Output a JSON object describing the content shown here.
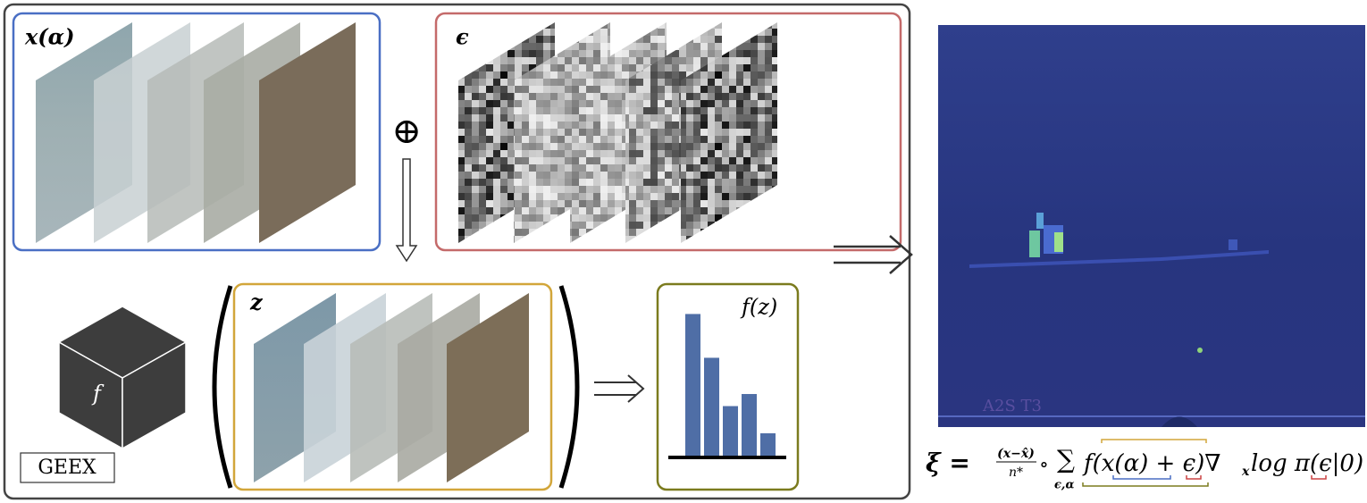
{
  "panels": {
    "x_alpha": {
      "label": "x(α)"
    },
    "epsilon": {
      "label": "ϵ"
    },
    "z": {
      "label": "z"
    },
    "output": {
      "label": "f(z)",
      "histogram": {
        "values": [
          0.95,
          0.66,
          0.34,
          0.42,
          0.16
        ],
        "ylim": [
          0,
          1
        ]
      }
    }
  },
  "operator": "⊕",
  "black_box": {
    "label": "f"
  },
  "method": {
    "label": "GEEX"
  },
  "formula": {
    "lhs": "ξ =",
    "fraction_num": "(x−x̂)",
    "fraction_den": "n*",
    "compose": "∘",
    "sum": "∑",
    "sum_sub": "ϵ,α",
    "body": "f(x(α) + ϵ)∇",
    "grad_sub": "x",
    "tail": " log π(ϵ|0)"
  }
}
